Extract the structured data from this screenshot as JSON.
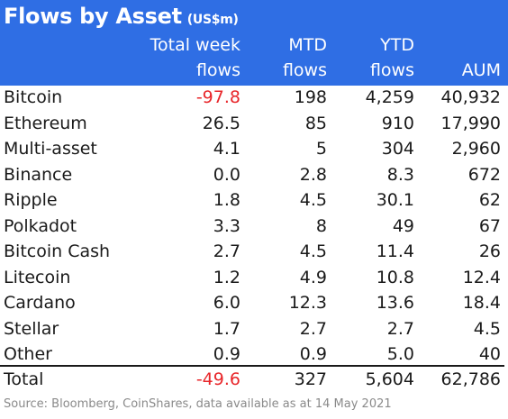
{
  "title": "Flows by Asset",
  "title_unit": "(US$m)",
  "columns": {
    "weekly": [
      "Total week",
      "flows"
    ],
    "mtd": [
      "MTD",
      "flows"
    ],
    "ytd": [
      "YTD",
      "flows"
    ],
    "aum": [
      "AUM"
    ]
  },
  "rows": [
    {
      "name": "Bitcoin",
      "weekly": "-97.8",
      "mtd": "198",
      "ytd": "4,259",
      "aum": "40,932"
    },
    {
      "name": "Ethereum",
      "weekly": "26.5",
      "mtd": "85",
      "ytd": "910",
      "aum": "17,990"
    },
    {
      "name": "Multi-asset",
      "weekly": "4.1",
      "mtd": "5",
      "ytd": "304",
      "aum": "2,960"
    },
    {
      "name": "Binance",
      "weekly": "0.0",
      "mtd": "2.8",
      "ytd": "8.3",
      "aum": "672"
    },
    {
      "name": "Ripple",
      "weekly": "1.8",
      "mtd": "4.5",
      "ytd": "30.1",
      "aum": "62"
    },
    {
      "name": "Polkadot",
      "weekly": "3.3",
      "mtd": "8",
      "ytd": "49",
      "aum": "67"
    },
    {
      "name": "Bitcoin Cash",
      "weekly": "2.7",
      "mtd": "4.5",
      "ytd": "11.4",
      "aum": "26"
    },
    {
      "name": "Litecoin",
      "weekly": "1.2",
      "mtd": "4.9",
      "ytd": "10.8",
      "aum": "12.4"
    },
    {
      "name": "Cardano",
      "weekly": "6.0",
      "mtd": "12.3",
      "ytd": "13.6",
      "aum": "18.4"
    },
    {
      "name": "Stellar",
      "weekly": "1.7",
      "mtd": "2.7",
      "ytd": "2.7",
      "aum": "4.5"
    },
    {
      "name": "Other",
      "weekly": "0.9",
      "mtd": "0.9",
      "ytd": "5.0",
      "aum": "40"
    }
  ],
  "total": {
    "name": "Total",
    "weekly": "-49.6",
    "mtd": "327",
    "ytd": "5,604",
    "aum": "62,786"
  },
  "source": "Source: Bloomberg, CoinShares, data available as at 14 May 2021",
  "colors": {
    "header_bg": "#2f6ee4",
    "negative": "#e8262a"
  }
}
